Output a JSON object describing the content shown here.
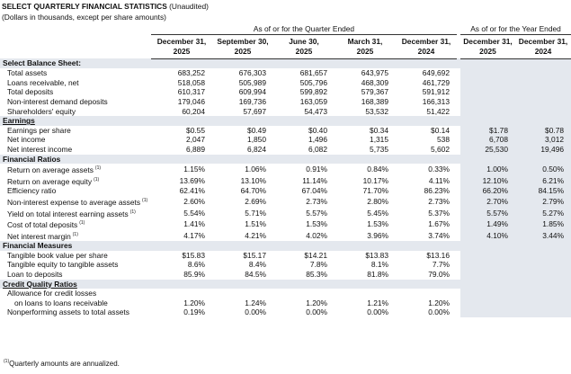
{
  "header": {
    "title": "SELECT QUARTERLY FINANCIAL STATISTICS",
    "title_note": "(Unaudited)",
    "subtitle": "(Dollars in thousands, except per share amounts)"
  },
  "groups": {
    "quarter": "As of or for the Quarter Ended",
    "year": "As of or for the Year Ended"
  },
  "columns": {
    "quarter": [
      {
        "date": "December 31,",
        "year": "2025"
      },
      {
        "date": "September 30,",
        "year": "2025"
      },
      {
        "date": "June 30,",
        "year": "2025"
      },
      {
        "date": "March 31,",
        "year": "2025"
      },
      {
        "date": "December 31,",
        "year": "2024"
      }
    ],
    "year": [
      {
        "date": "December 31,",
        "year": "2025"
      },
      {
        "date": "December 31,",
        "year": "2024"
      }
    ]
  },
  "sections": [
    {
      "title": "Select Balance Sheet:",
      "rows": [
        {
          "label": [
            "Total assets"
          ],
          "quarter": [
            "683,252",
            "676,303",
            "681,657",
            "643,975",
            "649,692"
          ]
        },
        {
          "label": [
            "Loans receivable, net"
          ],
          "quarter": [
            "518,058",
            "505,989",
            "505,796",
            "468,309",
            "461,729"
          ]
        },
        {
          "label": [
            "Total deposits"
          ],
          "quarter": [
            "610,317",
            "609,994",
            "599,892",
            "579,367",
            "591,912"
          ]
        },
        {
          "label": [
            "Non-interest demand deposits"
          ],
          "quarter": [
            "179,046",
            "169,736",
            "163,059",
            "168,389",
            "166,313"
          ]
        },
        {
          "label": [
            "Shareholders' equity"
          ],
          "quarter": [
            "60,204",
            "57,697",
            "54,473",
            "53,532",
            "51,422"
          ]
        }
      ]
    },
    {
      "title": "Earnings",
      "underline": true,
      "rows": [
        {
          "label": [
            "Earnings per share"
          ],
          "quarter": [
            "$0.55",
            "$0.49",
            "$0.40",
            "$0.34",
            "$0.14"
          ],
          "year": [
            "$1.78",
            "$0.78"
          ]
        },
        {
          "label": [
            "Net income"
          ],
          "quarter": [
            "2,047",
            "1,850",
            "1,496",
            "1,315",
            "538"
          ],
          "year": [
            "6,708",
            "3,012"
          ]
        },
        {
          "label": [
            "Net interest income"
          ],
          "quarter": [
            "6,889",
            "6,824",
            "6,082",
            "5,735",
            "5,602"
          ],
          "year": [
            "25,530",
            "19,496"
          ]
        }
      ]
    },
    {
      "title": "Financial Ratios",
      "rows": [
        {
          "label": [
            "Return on average assets"
          ],
          "note": "(1)",
          "quarter": [
            "1.15%",
            "1.06%",
            "0.91%",
            "0.84%",
            "0.33%"
          ],
          "year": [
            "1.00%",
            "0.50%"
          ]
        },
        {
          "label": [
            "Return on average equity"
          ],
          "note": "(1)",
          "quarter": [
            "13.69%",
            "13.10%",
            "11.14%",
            "10.17%",
            "4.11%"
          ],
          "year": [
            "12.10%",
            "6.21%"
          ]
        },
        {
          "label": [
            "Efficiency ratio"
          ],
          "quarter": [
            "62.41%",
            "64.70%",
            "67.04%",
            "71.70%",
            "86.23%"
          ],
          "year": [
            "66.20%",
            "84.15%"
          ]
        },
        {
          "label": [
            "Non-interest expense to average assets"
          ],
          "note": "(1)",
          "quarter": [
            "2.60%",
            "2.69%",
            "2.73%",
            "2.80%",
            "2.73%"
          ],
          "year": [
            "2.70%",
            "2.79%"
          ]
        },
        {
          "label": [
            "Yield on total interest earning assets"
          ],
          "note": "(1)",
          "quarter": [
            "5.54%",
            "5.71%",
            "5.57%",
            "5.45%",
            "5.37%"
          ],
          "year": [
            "5.57%",
            "5.27%"
          ]
        },
        {
          "label": [
            "Cost of total deposits"
          ],
          "note": "(1)",
          "quarter": [
            "1.41%",
            "1.51%",
            "1.53%",
            "1.53%",
            "1.67%"
          ],
          "year": [
            "1.49%",
            "1.85%"
          ]
        },
        {
          "label": [
            "Net interest margin"
          ],
          "note": "(1)",
          "quarter": [
            "4.17%",
            "4.21%",
            "4.02%",
            "3.96%",
            "3.74%"
          ],
          "year": [
            "4.10%",
            "3.44%"
          ]
        }
      ]
    },
    {
      "title": "Financial Measures",
      "rows": [
        {
          "label": [
            "Tangible book value per share"
          ],
          "quarter": [
            "$15.83",
            "$15.17",
            "$14.21",
            "$13.83",
            "$13.16"
          ]
        },
        {
          "label": [
            "Tangible equity to tangible assets"
          ],
          "quarter": [
            "8.6%",
            "8.4%",
            "7.8%",
            "8.1%",
            "7.7%"
          ]
        },
        {
          "label": [
            "Loan to deposits"
          ],
          "quarter": [
            "85.9%",
            "84.5%",
            "85.3%",
            "81.8%",
            "79.0%"
          ]
        }
      ]
    },
    {
      "title": "Credit Quality Ratios",
      "underline": true,
      "rows": [
        {
          "label": [
            "Allowance for credit losses",
            "on loans to loans receivable"
          ],
          "quarter": [
            "1.20%",
            "1.24%",
            "1.20%",
            "1.21%",
            "1.20%"
          ]
        },
        {
          "label": [
            "Nonperforming assets to total assets"
          ],
          "quarter": [
            "0.19%",
            "0.00%",
            "0.00%",
            "0.00%",
            "0.00%"
          ]
        }
      ]
    }
  ],
  "footnote": {
    "marker": "(1)",
    "text": "Quarterly amounts are annualized."
  }
}
